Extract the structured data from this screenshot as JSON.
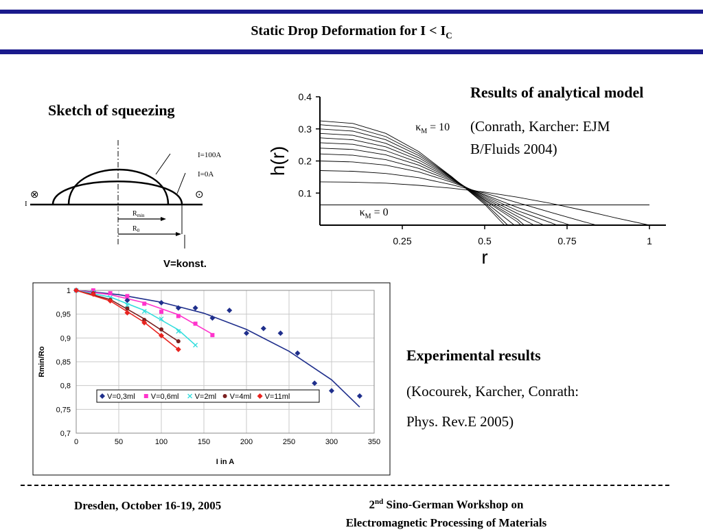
{
  "header": {
    "title_main": "Static Drop Deformation for I < I",
    "title_sub": "C",
    "accent_color": "#1a1a8c"
  },
  "sketch": {
    "heading": "Sketch of squeezing",
    "label_i100": "I=100A",
    "label_i0": "I=0A",
    "label_rmin_main": "R",
    "label_rmin_sub": "min",
    "label_r0_main": "R",
    "label_r0_sub": "0",
    "label_current": "I",
    "symbol_in": "⊗",
    "symbol_out": "⊙",
    "caption": "V=konst."
  },
  "analytical": {
    "heading": "Results of analytical model",
    "citation_line1": "(Conrath, Karcher: EJM",
    "citation_line2": "B/Fluids 2004)"
  },
  "experimental": {
    "heading": "Experimental results",
    "citation_line1": "(Kocourek, Karcher, Conrath:",
    "citation_line2": "Phys. Rev.E 2005)"
  },
  "footer": {
    "left": "Dresden, October 16-19, 2005",
    "right_ordinal": "2",
    "right_sup": "nd",
    "right_line1_rest": " Sino-German Workshop on",
    "right_line2": "Electromagnetic Processing of Materials"
  },
  "chart_data": [
    {
      "type": "line",
      "xlabel": "r",
      "ylabel": "h(r)",
      "xlim": [
        0,
        1.05
      ],
      "ylim": [
        0,
        0.4
      ],
      "xticks": [
        "0.25",
        "0.5",
        "0.75",
        "1"
      ],
      "xtick_values": [
        0.25,
        0.5,
        0.75,
        1
      ],
      "yticks": [
        "0.1",
        "0.2",
        "0.3",
        "0.4"
      ],
      "ytick_values": [
        0.1,
        0.2,
        0.3,
        0.4
      ],
      "annotation_top": {
        "kappa": "κ",
        "sub": "M",
        "text": " = 10",
        "x": 0.29,
        "y": 0.295
      },
      "annotation_bottom": {
        "kappa": "κ",
        "sub": "M",
        "text": " = 0",
        "x": 0.12,
        "y": 0.03
      },
      "series": [
        {
          "values": [
            [
              0,
              0.063
            ],
            [
              0.1,
              0.063
            ],
            [
              0.2,
              0.063
            ],
            [
              0.3,
              0.063
            ],
            [
              0.4,
              0.063
            ],
            [
              0.5,
              0.063
            ],
            [
              0.6,
              0.063
            ],
            [
              0.7,
              0.063
            ],
            [
              0.8,
              0.063
            ],
            [
              0.9,
              0.063
            ],
            [
              1.0,
              0.063
            ]
          ]
        },
        {
          "values": [
            [
              0,
              0.135
            ],
            [
              0.1,
              0.134
            ],
            [
              0.2,
              0.131
            ],
            [
              0.3,
              0.124
            ],
            [
              0.4,
              0.115
            ],
            [
              0.5,
              0.103
            ],
            [
              0.6,
              0.087
            ],
            [
              0.7,
              0.068
            ],
            [
              0.8,
              0.046
            ],
            [
              0.9,
              0.022
            ],
            [
              1.0,
              0.0
            ]
          ]
        },
        {
          "values": [
            [
              0,
              0.17
            ],
            [
              0.1,
              0.168
            ],
            [
              0.2,
              0.161
            ],
            [
              0.3,
              0.148
            ],
            [
              0.4,
              0.126
            ],
            [
              0.5,
              0.1
            ],
            [
              0.6,
              0.07
            ],
            [
              0.7,
              0.04
            ],
            [
              0.8,
              0.011
            ],
            [
              0.84,
              0.0
            ]
          ]
        },
        {
          "values": [
            [
              0,
              0.2
            ],
            [
              0.1,
              0.197
            ],
            [
              0.2,
              0.187
            ],
            [
              0.3,
              0.166
            ],
            [
              0.4,
              0.134
            ],
            [
              0.5,
              0.095
            ],
            [
              0.6,
              0.055
            ],
            [
              0.7,
              0.02
            ],
            [
              0.76,
              0.0
            ]
          ]
        },
        {
          "values": [
            [
              0,
              0.222
            ],
            [
              0.1,
              0.218
            ],
            [
              0.2,
              0.204
            ],
            [
              0.3,
              0.177
            ],
            [
              0.4,
              0.138
            ],
            [
              0.5,
              0.092
            ],
            [
              0.6,
              0.045
            ],
            [
              0.7,
              0.008
            ],
            [
              0.72,
              0.0
            ]
          ]
        },
        {
          "values": [
            [
              0,
              0.24
            ],
            [
              0.1,
              0.236
            ],
            [
              0.2,
              0.219
            ],
            [
              0.3,
              0.187
            ],
            [
              0.4,
              0.141
            ],
            [
              0.5,
              0.088
            ],
            [
              0.6,
              0.036
            ],
            [
              0.68,
              0.0
            ]
          ]
        },
        {
          "values": [
            [
              0,
              0.257
            ],
            [
              0.1,
              0.252
            ],
            [
              0.2,
              0.232
            ],
            [
              0.3,
              0.195
            ],
            [
              0.4,
              0.144
            ],
            [
              0.5,
              0.084
            ],
            [
              0.6,
              0.027
            ],
            [
              0.65,
              0.0
            ]
          ]
        },
        {
          "values": [
            [
              0,
              0.272
            ],
            [
              0.1,
              0.266
            ],
            [
              0.2,
              0.244
            ],
            [
              0.3,
              0.203
            ],
            [
              0.4,
              0.146
            ],
            [
              0.5,
              0.08
            ],
            [
              0.6,
              0.018
            ],
            [
              0.62,
              0.0
            ]
          ]
        },
        {
          "values": [
            [
              0,
              0.286
            ],
            [
              0.1,
              0.28
            ],
            [
              0.2,
              0.255
            ],
            [
              0.3,
              0.21
            ],
            [
              0.4,
              0.148
            ],
            [
              0.5,
              0.077
            ],
            [
              0.6,
              0.01
            ],
            [
              0.61,
              0.0
            ]
          ]
        },
        {
          "values": [
            [
              0,
              0.3
            ],
            [
              0.1,
              0.293
            ],
            [
              0.2,
              0.266
            ],
            [
              0.3,
              0.217
            ],
            [
              0.4,
              0.149
            ],
            [
              0.5,
              0.073
            ],
            [
              0.59,
              0.0
            ]
          ]
        },
        {
          "values": [
            [
              0,
              0.313
            ],
            [
              0.1,
              0.305
            ],
            [
              0.2,
              0.276
            ],
            [
              0.3,
              0.223
            ],
            [
              0.4,
              0.15
            ],
            [
              0.5,
              0.069
            ],
            [
              0.57,
              0.0
            ]
          ]
        },
        {
          "values": [
            [
              0,
              0.325
            ],
            [
              0.1,
              0.317
            ],
            [
              0.2,
              0.286
            ],
            [
              0.3,
              0.229
            ],
            [
              0.4,
              0.151
            ],
            [
              0.5,
              0.065
            ],
            [
              0.56,
              0.0
            ]
          ]
        }
      ]
    },
    {
      "type": "scatter",
      "xlabel": "I in A",
      "ylabel": "Rmin/Ro",
      "xlim": [
        0,
        350
      ],
      "ylim": [
        0.7,
        1.0
      ],
      "xticks": [
        "0",
        "50",
        "100",
        "150",
        "200",
        "250",
        "300",
        "350"
      ],
      "xtick_values": [
        0,
        50,
        100,
        150,
        200,
        250,
        300,
        350
      ],
      "yticks": [
        "0,7",
        "0,75",
        "0,8",
        "0,85",
        "0,9",
        "0,95",
        "1"
      ],
      "ytick_values": [
        0.7,
        0.75,
        0.8,
        0.85,
        0.9,
        0.95,
        1.0
      ],
      "grid": true,
      "legend_position": "bottom-center",
      "series": [
        {
          "name": "V=0,3ml",
          "color": "#1f2f8c",
          "marker": "diamond",
          "points": [
            [
              0,
              1.0
            ],
            [
              20,
              0.998
            ],
            [
              60,
              0.979
            ],
            [
              100,
              0.974
            ],
            [
              120,
              0.963
            ],
            [
              140,
              0.963
            ],
            [
              160,
              0.942
            ],
            [
              180,
              0.958
            ],
            [
              200,
              0.91
            ],
            [
              220,
              0.92
            ],
            [
              240,
              0.91
            ],
            [
              260,
              0.868
            ],
            [
              280,
              0.805
            ],
            [
              300,
              0.789
            ],
            [
              333,
              0.778
            ]
          ],
          "fit": [
            [
              0,
              1.0
            ],
            [
              50,
              0.991
            ],
            [
              100,
              0.975
            ],
            [
              150,
              0.952
            ],
            [
              200,
              0.918
            ],
            [
              250,
              0.872
            ],
            [
              300,
              0.812
            ],
            [
              333,
              0.755
            ]
          ]
        },
        {
          "name": "V=0,6ml",
          "color": "#ff33cc",
          "marker": "square",
          "points": [
            [
              0,
              1.0
            ],
            [
              20,
              1.0
            ],
            [
              40,
              0.994
            ],
            [
              60,
              0.988
            ],
            [
              80,
              0.972
            ],
            [
              100,
              0.955
            ],
            [
              120,
              0.946
            ],
            [
              140,
              0.93
            ],
            [
              160,
              0.906
            ]
          ],
          "fit": [
            [
              0,
              1.0
            ],
            [
              40,
              0.991
            ],
            [
              80,
              0.974
            ],
            [
              120,
              0.949
            ],
            [
              160,
              0.908
            ]
          ]
        },
        {
          "name": "V=2ml",
          "color": "#33dddd",
          "marker": "x",
          "points": [
            [
              0,
              1.0
            ],
            [
              20,
              0.995
            ],
            [
              40,
              0.985
            ],
            [
              60,
              0.969
            ],
            [
              80,
              0.956
            ],
            [
              100,
              0.94
            ],
            [
              120,
              0.914
            ],
            [
              140,
              0.885
            ]
          ],
          "fit": [
            [
              0,
              1.0
            ],
            [
              40,
              0.986
            ],
            [
              80,
              0.958
            ],
            [
              120,
              0.917
            ],
            [
              140,
              0.885
            ]
          ]
        },
        {
          "name": "V=4ml",
          "color": "#7a1f1f",
          "marker": "circle",
          "points": [
            [
              0,
              1.0
            ],
            [
              20,
              0.994
            ],
            [
              40,
              0.98
            ],
            [
              60,
              0.962
            ],
            [
              80,
              0.938
            ],
            [
              100,
              0.918
            ],
            [
              120,
              0.893
            ]
          ],
          "fit": [
            [
              0,
              1.0
            ],
            [
              40,
              0.981
            ],
            [
              80,
              0.94
            ],
            [
              120,
              0.893
            ]
          ]
        },
        {
          "name": "V=11ml",
          "color": "#e8231f",
          "marker": "diamond",
          "points": [
            [
              0,
              1.0
            ],
            [
              20,
              0.992
            ],
            [
              40,
              0.978
            ],
            [
              60,
              0.953
            ],
            [
              80,
              0.932
            ],
            [
              100,
              0.905
            ],
            [
              120,
              0.876
            ]
          ],
          "fit": [
            [
              0,
              1.0
            ],
            [
              40,
              0.978
            ],
            [
              80,
              0.933
            ],
            [
              120,
              0.876
            ]
          ]
        }
      ]
    }
  ]
}
